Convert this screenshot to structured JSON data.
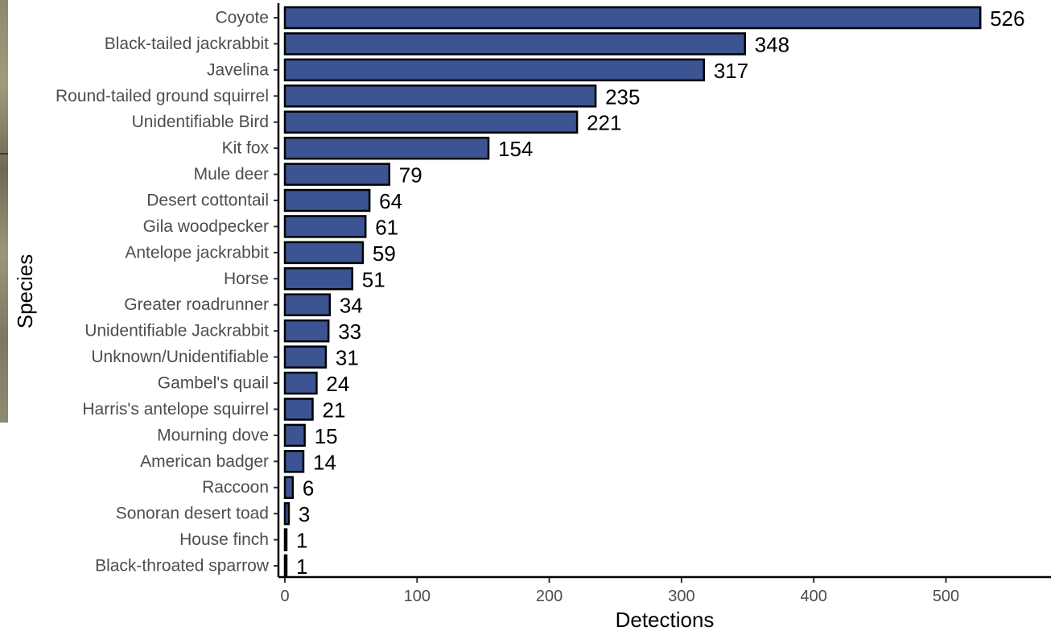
{
  "chart_data": {
    "type": "bar",
    "orientation": "horizontal",
    "title": "",
    "xlabel": "Detections",
    "ylabel": "Species",
    "xlim": [
      0,
      580
    ],
    "x_ticks": [
      0,
      100,
      200,
      300,
      400,
      500
    ],
    "grid": false,
    "legend": "none",
    "bar_color": "#3c5491",
    "bar_outline_color": "#000000",
    "categories": [
      "Coyote",
      "Black-tailed jackrabbit",
      "Javelina",
      "Round-tailed ground squirrel",
      "Unidentifiable Bird",
      "Kit fox",
      "Mule deer",
      "Desert cottontail",
      "Gila woodpecker",
      "Antelope jackrabbit",
      "Horse",
      "Greater roadrunner",
      "Unidentifiable Jackrabbit",
      "Unknown/Unidentifiable",
      "Gambel's quail",
      "Harris's antelope squirrel",
      "Mourning dove",
      "American badger",
      "Raccoon",
      "Sonoran desert toad",
      "House finch",
      "Black-throated sparrow"
    ],
    "values": [
      526,
      348,
      317,
      235,
      221,
      154,
      79,
      64,
      61,
      59,
      51,
      34,
      33,
      31,
      24,
      21,
      15,
      14,
      6,
      3,
      1,
      1
    ]
  }
}
